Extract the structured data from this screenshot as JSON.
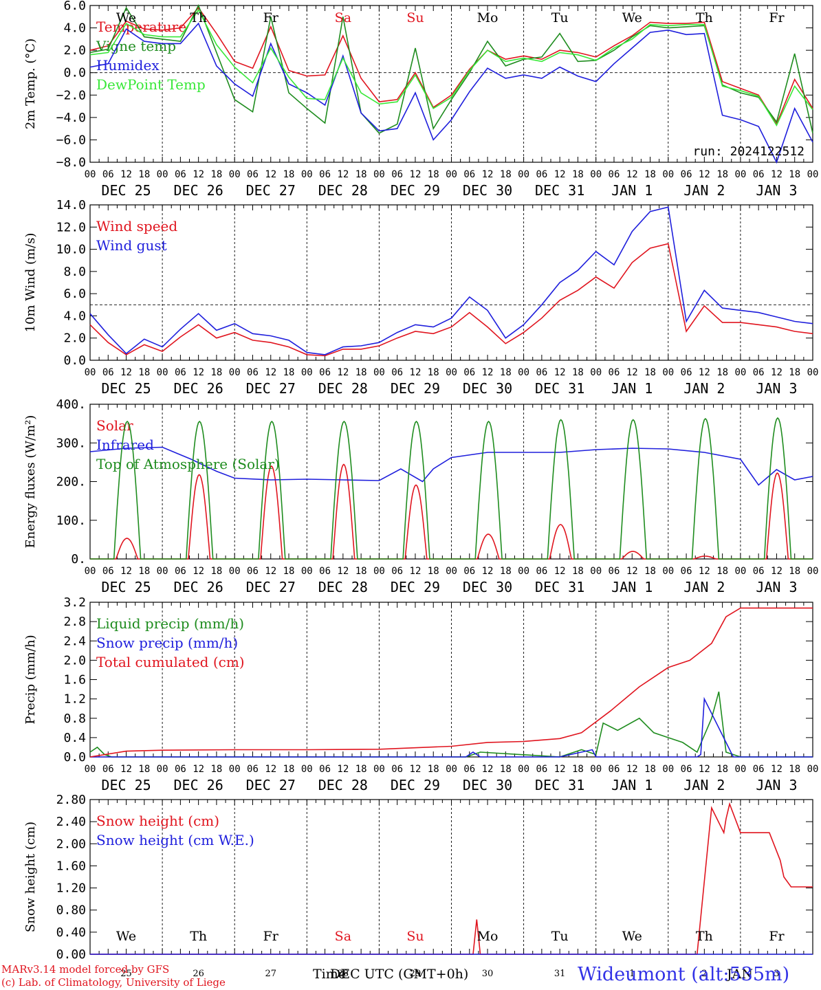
{
  "colors": {
    "red": "#e0141e",
    "green": "#1e8c1e",
    "blue": "#1e1edc",
    "lightgreen": "#38e838",
    "station": "#3232e6"
  },
  "day_names": [
    "We",
    "Th",
    "Fr",
    "Sa",
    "Su",
    "Mo",
    "Tu",
    "We",
    "Th",
    "Fr"
  ],
  "weekend_flags": [
    false,
    false,
    false,
    true,
    true,
    false,
    false,
    false,
    false,
    false
  ],
  "hour_ticks": [
    "00",
    "06",
    "12",
    "18"
  ],
  "end_hour": "00",
  "date_labels": [
    "DEC 25",
    "DEC 26",
    "DEC 27",
    "DEC 28",
    "DEC 29",
    "DEC 30",
    "DEC 31",
    "JAN  1",
    "JAN  2",
    "JAN  3"
  ],
  "bottom_day_numbers": [
    "25",
    "26",
    "27",
    "28",
    "29",
    "30",
    "31",
    "1",
    "2",
    "3"
  ],
  "footer": {
    "model": "MARv3.14 model forced by GFS",
    "lab": "(c) Lab. of Climatology, University of Liege",
    "axis_title_1": "Time",
    "axis_title_2": "DEC UTC (GMT+0h)",
    "month_overlay": "JAN",
    "station": "Wideumont (alt:535m)"
  },
  "chart_data": [
    {
      "type": "line",
      "ylabel": "2m Temp. (°C)",
      "ylim": [
        -8,
        6
      ],
      "yticks": [
        "6.0",
        "4.0",
        "2.0",
        "0.0",
        "−2.0",
        "−4.0",
        "−6.0",
        "−8.0"
      ],
      "ref_line": 0,
      "x_unit": "days since DEC 25 00 UTC",
      "annotation": "run: 2024122512",
      "series": [
        {
          "name": "Temperature",
          "color": "red",
          "x": [
            0,
            0.25,
            0.5,
            0.75,
            1,
            1.25,
            1.5,
            1.75,
            2,
            2.25,
            2.5,
            2.75,
            3,
            3.25,
            3.5,
            3.75,
            4,
            4.25,
            4.5,
            4.75,
            5,
            5.25,
            5.5,
            5.75,
            6,
            6.25,
            6.5,
            6.75,
            7,
            7.25,
            7.5,
            7.75,
            8,
            8.25,
            8.5,
            8.75,
            9,
            9.25,
            9.5,
            9.75,
            10
          ],
          "y": [
            2.0,
            2.4,
            4.6,
            3.9,
            3.8,
            4.0,
            5.8,
            3.5,
            1.0,
            0.4,
            4.1,
            0.2,
            -0.3,
            -0.2,
            3.3,
            -0.5,
            -2.6,
            -2.4,
            0.0,
            -3.1,
            -2.0,
            0.3,
            2.0,
            1.2,
            1.5,
            1.2,
            2.0,
            1.8,
            1.4,
            2.4,
            3.3,
            4.5,
            4.4,
            4.4,
            4.5,
            -0.8,
            -1.4,
            -2.0,
            -4.6,
            -0.6,
            -3.2
          ]
        },
        {
          "name": "Vigne temp",
          "color": "green",
          "x": [
            0,
            0.25,
            0.5,
            0.75,
            1,
            1.25,
            1.5,
            1.75,
            2,
            2.25,
            2.5,
            2.75,
            3,
            3.25,
            3.5,
            3.75,
            4,
            4.25,
            4.5,
            4.75,
            5,
            5.25,
            5.5,
            5.75,
            6,
            6.25,
            6.5,
            6.75,
            7,
            7.25,
            7.5,
            7.75,
            8,
            8.25,
            8.5,
            8.75,
            9,
            9.25,
            9.5,
            9.75,
            10
          ],
          "y": [
            1.8,
            2.1,
            5.8,
            3.2,
            3.0,
            2.8,
            6.0,
            1.8,
            -2.4,
            -3.5,
            5.0,
            -1.8,
            -3.2,
            -4.5,
            5.0,
            -3.6,
            -5.4,
            -4.6,
            2.2,
            -5.0,
            -2.4,
            0.0,
            2.8,
            0.6,
            1.2,
            1.4,
            3.5,
            1.0,
            1.1,
            2.0,
            3.2,
            4.2,
            4.0,
            4.1,
            4.2,
            -1.1,
            -1.8,
            -2.2,
            -4.4,
            1.7,
            -5.4
          ]
        },
        {
          "name": "Humidex",
          "color": "blue",
          "x": [
            0,
            0.25,
            0.5,
            0.75,
            1,
            1.25,
            1.5,
            1.75,
            2,
            2.25,
            2.5,
            2.75,
            3,
            3.25,
            3.5,
            3.75,
            4,
            4.25,
            4.5,
            4.75,
            5,
            5.25,
            5.5,
            5.75,
            6,
            6.25,
            6.5,
            6.75,
            7,
            7.25,
            7.5,
            7.75,
            8,
            8.25,
            8.5,
            8.75,
            9,
            9.25,
            9.5,
            9.75,
            10
          ],
          "y": [
            0.5,
            0.8,
            3.9,
            2.8,
            2.6,
            2.6,
            4.4,
            0.6,
            -1.0,
            -2.1,
            2.6,
            -1.0,
            -1.8,
            -2.9,
            1.5,
            -3.6,
            -5.2,
            -5.0,
            -1.8,
            -6.0,
            -4.2,
            -1.7,
            0.4,
            -0.5,
            -0.2,
            -0.5,
            0.5,
            -0.3,
            -0.8,
            0.8,
            2.2,
            3.6,
            3.8,
            3.4,
            3.5,
            -3.8,
            -4.2,
            -4.8,
            -8.0,
            -3.2,
            -6.2
          ]
        },
        {
          "name": "DewPoint Temp",
          "color": "lightgreen",
          "x": [
            0,
            0.25,
            0.5,
            0.75,
            1,
            1.25,
            1.5,
            1.75,
            2,
            2.25,
            2.5,
            2.75,
            3,
            3.25,
            3.5,
            3.75,
            4,
            4.25,
            4.5,
            4.75,
            5,
            5.25,
            5.5,
            5.75,
            6,
            6.25,
            6.5,
            6.75,
            7,
            7.25,
            7.5,
            7.75,
            8,
            8.25,
            8.5,
            8.75,
            9,
            9.25,
            9.5,
            9.75,
            10
          ],
          "y": [
            1.6,
            1.8,
            4.4,
            3.4,
            3.2,
            3.2,
            5.6,
            2.5,
            0.5,
            -0.9,
            2.2,
            -0.4,
            -2.3,
            -2.4,
            1.3,
            -1.8,
            -2.8,
            -2.6,
            -0.2,
            -3.2,
            -2.2,
            0.2,
            2.0,
            1.0,
            1.3,
            1.0,
            1.8,
            1.6,
            1.1,
            2.2,
            3.0,
            4.3,
            4.2,
            4.3,
            4.3,
            -1.2,
            -1.6,
            -2.1,
            -4.7,
            -1.2,
            -3.3
          ]
        }
      ]
    },
    {
      "type": "line",
      "ylabel": "10m Wind (m/s)",
      "ylim": [
        0,
        14
      ],
      "yticks": [
        "14.0",
        "12.0",
        "10.0",
        "8.0",
        "6.0",
        "4.0",
        "2.0",
        "0.0"
      ],
      "ref_line": 5,
      "x_unit": "days since DEC 25 00 UTC",
      "series": [
        {
          "name": "Wind speed",
          "color": "red",
          "x": [
            0,
            0.25,
            0.5,
            0.75,
            1,
            1.25,
            1.5,
            1.75,
            2,
            2.25,
            2.5,
            2.75,
            3,
            3.25,
            3.5,
            3.75,
            4,
            4.25,
            4.5,
            4.75,
            5,
            5.25,
            5.5,
            5.75,
            6,
            6.25,
            6.5,
            6.75,
            7,
            7.25,
            7.5,
            7.75,
            8,
            8.25,
            8.5,
            8.75,
            9,
            9.25,
            9.5,
            9.75,
            10
          ],
          "y": [
            3.2,
            1.6,
            0.5,
            1.4,
            0.8,
            2.1,
            3.2,
            2.0,
            2.5,
            1.8,
            1.6,
            1.2,
            0.5,
            0.4,
            1.0,
            1.0,
            1.3,
            2.0,
            2.6,
            2.4,
            3.0,
            4.3,
            3.0,
            1.5,
            2.5,
            3.8,
            5.4,
            6.3,
            7.5,
            6.5,
            8.8,
            10.1,
            10.5,
            2.6,
            4.9,
            3.4,
            3.4,
            3.2,
            3.0,
            2.6,
            2.4
          ]
        },
        {
          "name": "Wind gust",
          "color": "blue",
          "x": [
            0,
            0.25,
            0.5,
            0.75,
            1,
            1.25,
            1.5,
            1.75,
            2,
            2.25,
            2.5,
            2.75,
            3,
            3.25,
            3.5,
            3.75,
            4,
            4.25,
            4.5,
            4.75,
            5,
            5.25,
            5.5,
            5.75,
            6,
            6.25,
            6.5,
            6.75,
            7,
            7.25,
            7.5,
            7.75,
            8,
            8.25,
            8.5,
            8.75,
            9,
            9.25,
            9.5,
            9.75,
            10
          ],
          "y": [
            4.2,
            2.3,
            0.6,
            1.9,
            1.2,
            2.8,
            4.2,
            2.7,
            3.3,
            2.4,
            2.2,
            1.8,
            0.7,
            0.5,
            1.2,
            1.3,
            1.6,
            2.5,
            3.2,
            3.0,
            3.8,
            5.7,
            4.5,
            2.0,
            3.2,
            5.0,
            7.0,
            8.1,
            9.8,
            8.6,
            11.6,
            13.4,
            13.8,
            3.5,
            6.3,
            4.7,
            4.5,
            4.3,
            3.9,
            3.5,
            3.3
          ]
        }
      ]
    },
    {
      "type": "line",
      "ylabel": "Energy fluxes (W/m²)",
      "ylim": [
        0,
        450
      ],
      "yticks": [
        "400.",
        "300.",
        "200.",
        "100.",
        "0."
      ],
      "x_unit": "days since DEC 25 00 UTC",
      "day_solar_peaks": [
        60,
        245,
        270,
        275,
        215,
        72,
        100,
        22,
        8,
        250
      ],
      "toa_peaks": [
        400,
        400,
        400,
        400,
        400,
        400,
        405,
        405,
        408,
        410
      ],
      "series": [
        {
          "name": "Solar",
          "color": "red",
          "pulse": "day_solar_peaks"
        },
        {
          "name": "Infrared",
          "color": "blue",
          "x": [
            0,
            0.5,
            1,
            1.4,
            1.75,
            2,
            2.5,
            3,
            3.5,
            4,
            4.3,
            4.6,
            4.75,
            5,
            5.5,
            6,
            6.5,
            7,
            7.5,
            8,
            8.5,
            9,
            9.25,
            9.5,
            9.75,
            10
          ],
          "y": [
            312,
            322,
            325,
            290,
            255,
            235,
            230,
            232,
            230,
            228,
            262,
            225,
            262,
            295,
            310,
            310,
            310,
            318,
            322,
            320,
            310,
            290,
            215,
            260,
            230,
            240
          ]
        },
        {
          "name": "Top of Atmosphere (Solar)",
          "color": "green",
          "pulse": "toa_peaks"
        }
      ]
    },
    {
      "type": "line",
      "ylabel": "Precip (mm/h)",
      "ylim": [
        0,
        3.2
      ],
      "yticks": [
        "3.2",
        "2.8",
        "2.4",
        "2.0",
        "1.6",
        "1.2",
        "0.8",
        "0.4",
        "0.0"
      ],
      "x_unit": "days since DEC 25 00 UTC",
      "series": [
        {
          "name": "Liquid precip (mm/h)",
          "color": "green",
          "x": [
            0,
            0.1,
            0.2,
            0.3,
            0.5,
            1,
            5.2,
            5.4,
            6.5,
            6.8,
            7.0,
            7.1,
            7.3,
            7.6,
            7.8,
            8.0,
            8.2,
            8.4,
            8.6,
            8.7,
            8.8,
            9.0,
            10
          ],
          "y": [
            0.1,
            0.2,
            0.05,
            0,
            0,
            0,
            0,
            0.1,
            0,
            0.15,
            0.05,
            0.7,
            0.55,
            0.8,
            0.5,
            0.4,
            0.3,
            0.1,
            0.8,
            1.35,
            0.1,
            0,
            0
          ]
        },
        {
          "name": "Snow precip (mm/h)",
          "color": "blue",
          "x": [
            0,
            5.2,
            5.3,
            5.4,
            6.5,
            6.95,
            7.0,
            7.1,
            8.4,
            8.45,
            8.5,
            8.6,
            8.8,
            8.9,
            10
          ],
          "y": [
            0,
            0,
            0.1,
            0,
            0,
            0.15,
            0,
            0,
            0,
            0.05,
            1.2,
            0.9,
            0.3,
            0,
            0
          ]
        },
        {
          "name": "Total cumulated (cm)",
          "color": "red",
          "x": [
            0,
            0.5,
            1,
            2,
            3,
            4,
            5,
            5.5,
            6,
            6.5,
            6.8,
            7.2,
            7.6,
            8.0,
            8.3,
            8.6,
            8.8,
            9.0,
            10
          ],
          "y": [
            0,
            0.12,
            0.14,
            0.15,
            0.15,
            0.16,
            0.22,
            0.3,
            0.32,
            0.38,
            0.5,
            0.95,
            1.45,
            1.85,
            2.0,
            2.35,
            2.9,
            3.08,
            3.08
          ]
        }
      ]
    },
    {
      "type": "line",
      "ylabel": "Snow height (cm)",
      "ylim": [
        0,
        2.8
      ],
      "yticks": [
        "2.80",
        "2.40",
        "2.00",
        "1.60",
        "1.20",
        "0.80",
        "0.40",
        "0.00"
      ],
      "x_unit": "days since DEC 25 00 UTC",
      "series": [
        {
          "name": "Snow height (cm)",
          "color": "red",
          "x": [
            0,
            5.3,
            5.35,
            5.4,
            8.4,
            8.6,
            8.77,
            8.8,
            8.85,
            9.0,
            9.4,
            9.55,
            9.6,
            9.7,
            10
          ],
          "y": [
            0,
            0,
            0.63,
            0,
            0,
            2.65,
            2.2,
            2.45,
            2.72,
            2.2,
            2.2,
            1.7,
            1.4,
            1.22,
            1.22
          ]
        },
        {
          "name": "Snow height (cm W.E.)",
          "color": "blue",
          "x": [
            0,
            10
          ],
          "y": [
            0,
            0
          ]
        }
      ]
    }
  ]
}
